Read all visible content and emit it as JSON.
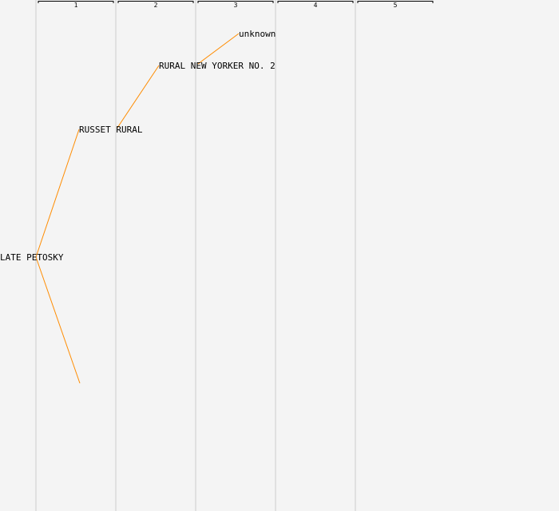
{
  "generations": [
    "1",
    "2",
    "3",
    "4",
    "5"
  ],
  "colors": {
    "background": "#f4f4f4",
    "column_line": "#e0e0e0",
    "header_bracket": "#000000",
    "edge": "#ff8c00"
  },
  "nodes": [
    {
      "id": "n0",
      "label": "LATE PETOSKY",
      "generation": 1
    },
    {
      "id": "n1",
      "label": "RUSSET RURAL",
      "generation": 2
    },
    {
      "id": "n2",
      "label": "RURAL NEW YORKER NO. 2",
      "generation": 3
    },
    {
      "id": "n3",
      "label": "unknown",
      "generation": 4
    },
    {
      "id": "n4",
      "label": "",
      "generation": 2
    }
  ],
  "edges": [
    {
      "from": "n0",
      "to": "n1"
    },
    {
      "from": "n1",
      "to": "n2"
    },
    {
      "from": "n2",
      "to": "n3"
    },
    {
      "from": "n0",
      "to": "n4"
    }
  ]
}
